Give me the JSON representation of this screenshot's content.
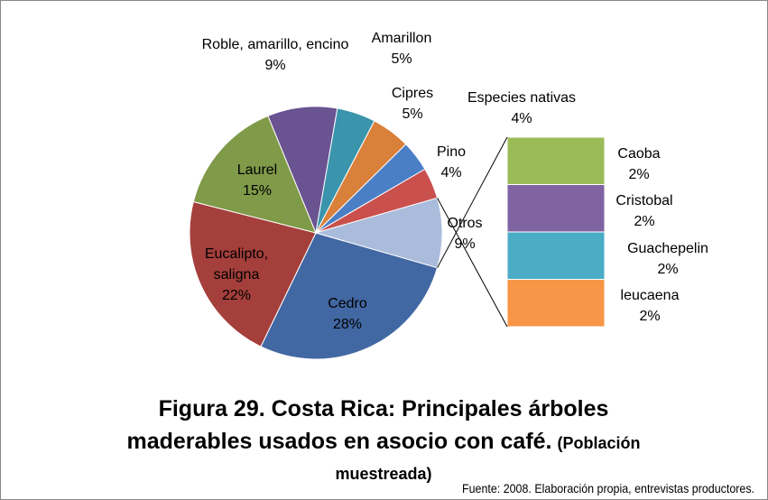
{
  "chart_data": {
    "type": "pie-of-bar",
    "title": [
      "Figura 29. Costa Rica: Principales árboles",
      "maderables usados en asocio con café."
    ],
    "subtitle": [
      "(Población",
      "muestreada)"
    ],
    "source": "Fuente: 2008. Elaboración propia, entrevistas productores.",
    "categories": [
      "Cedro",
      "Eucalipto, saligna",
      "Laurel",
      "Roble, amarillo, encino",
      "Amarillon",
      "Cipres",
      "Especies nativas",
      "Pino",
      "Otros"
    ],
    "values": [
      28,
      22,
      15,
      9,
      5,
      5,
      4,
      4,
      9
    ],
    "value_labels": [
      "28%",
      "22%",
      "15%",
      "9%",
      "5%",
      "5%",
      "4%",
      "4%",
      "9%"
    ],
    "colors": [
      "#4268a3",
      "#a43f3b",
      "#7f9a48",
      "#6a5391",
      "#3a94ab",
      "#d9803a",
      "#4a7fc6",
      "#c9504d",
      "#a9bcdb"
    ],
    "bar": {
      "categories": [
        "Caoba",
        "Cristobal",
        "Guachepelin",
        "leucaena"
      ],
      "values": [
        2,
        2,
        2,
        2
      ],
      "value_labels": [
        "2%",
        "2%",
        "2%",
        "2%"
      ],
      "colors": [
        "#9bbb59",
        "#8064a2",
        "#4bacc6",
        "#f79646"
      ]
    }
  }
}
